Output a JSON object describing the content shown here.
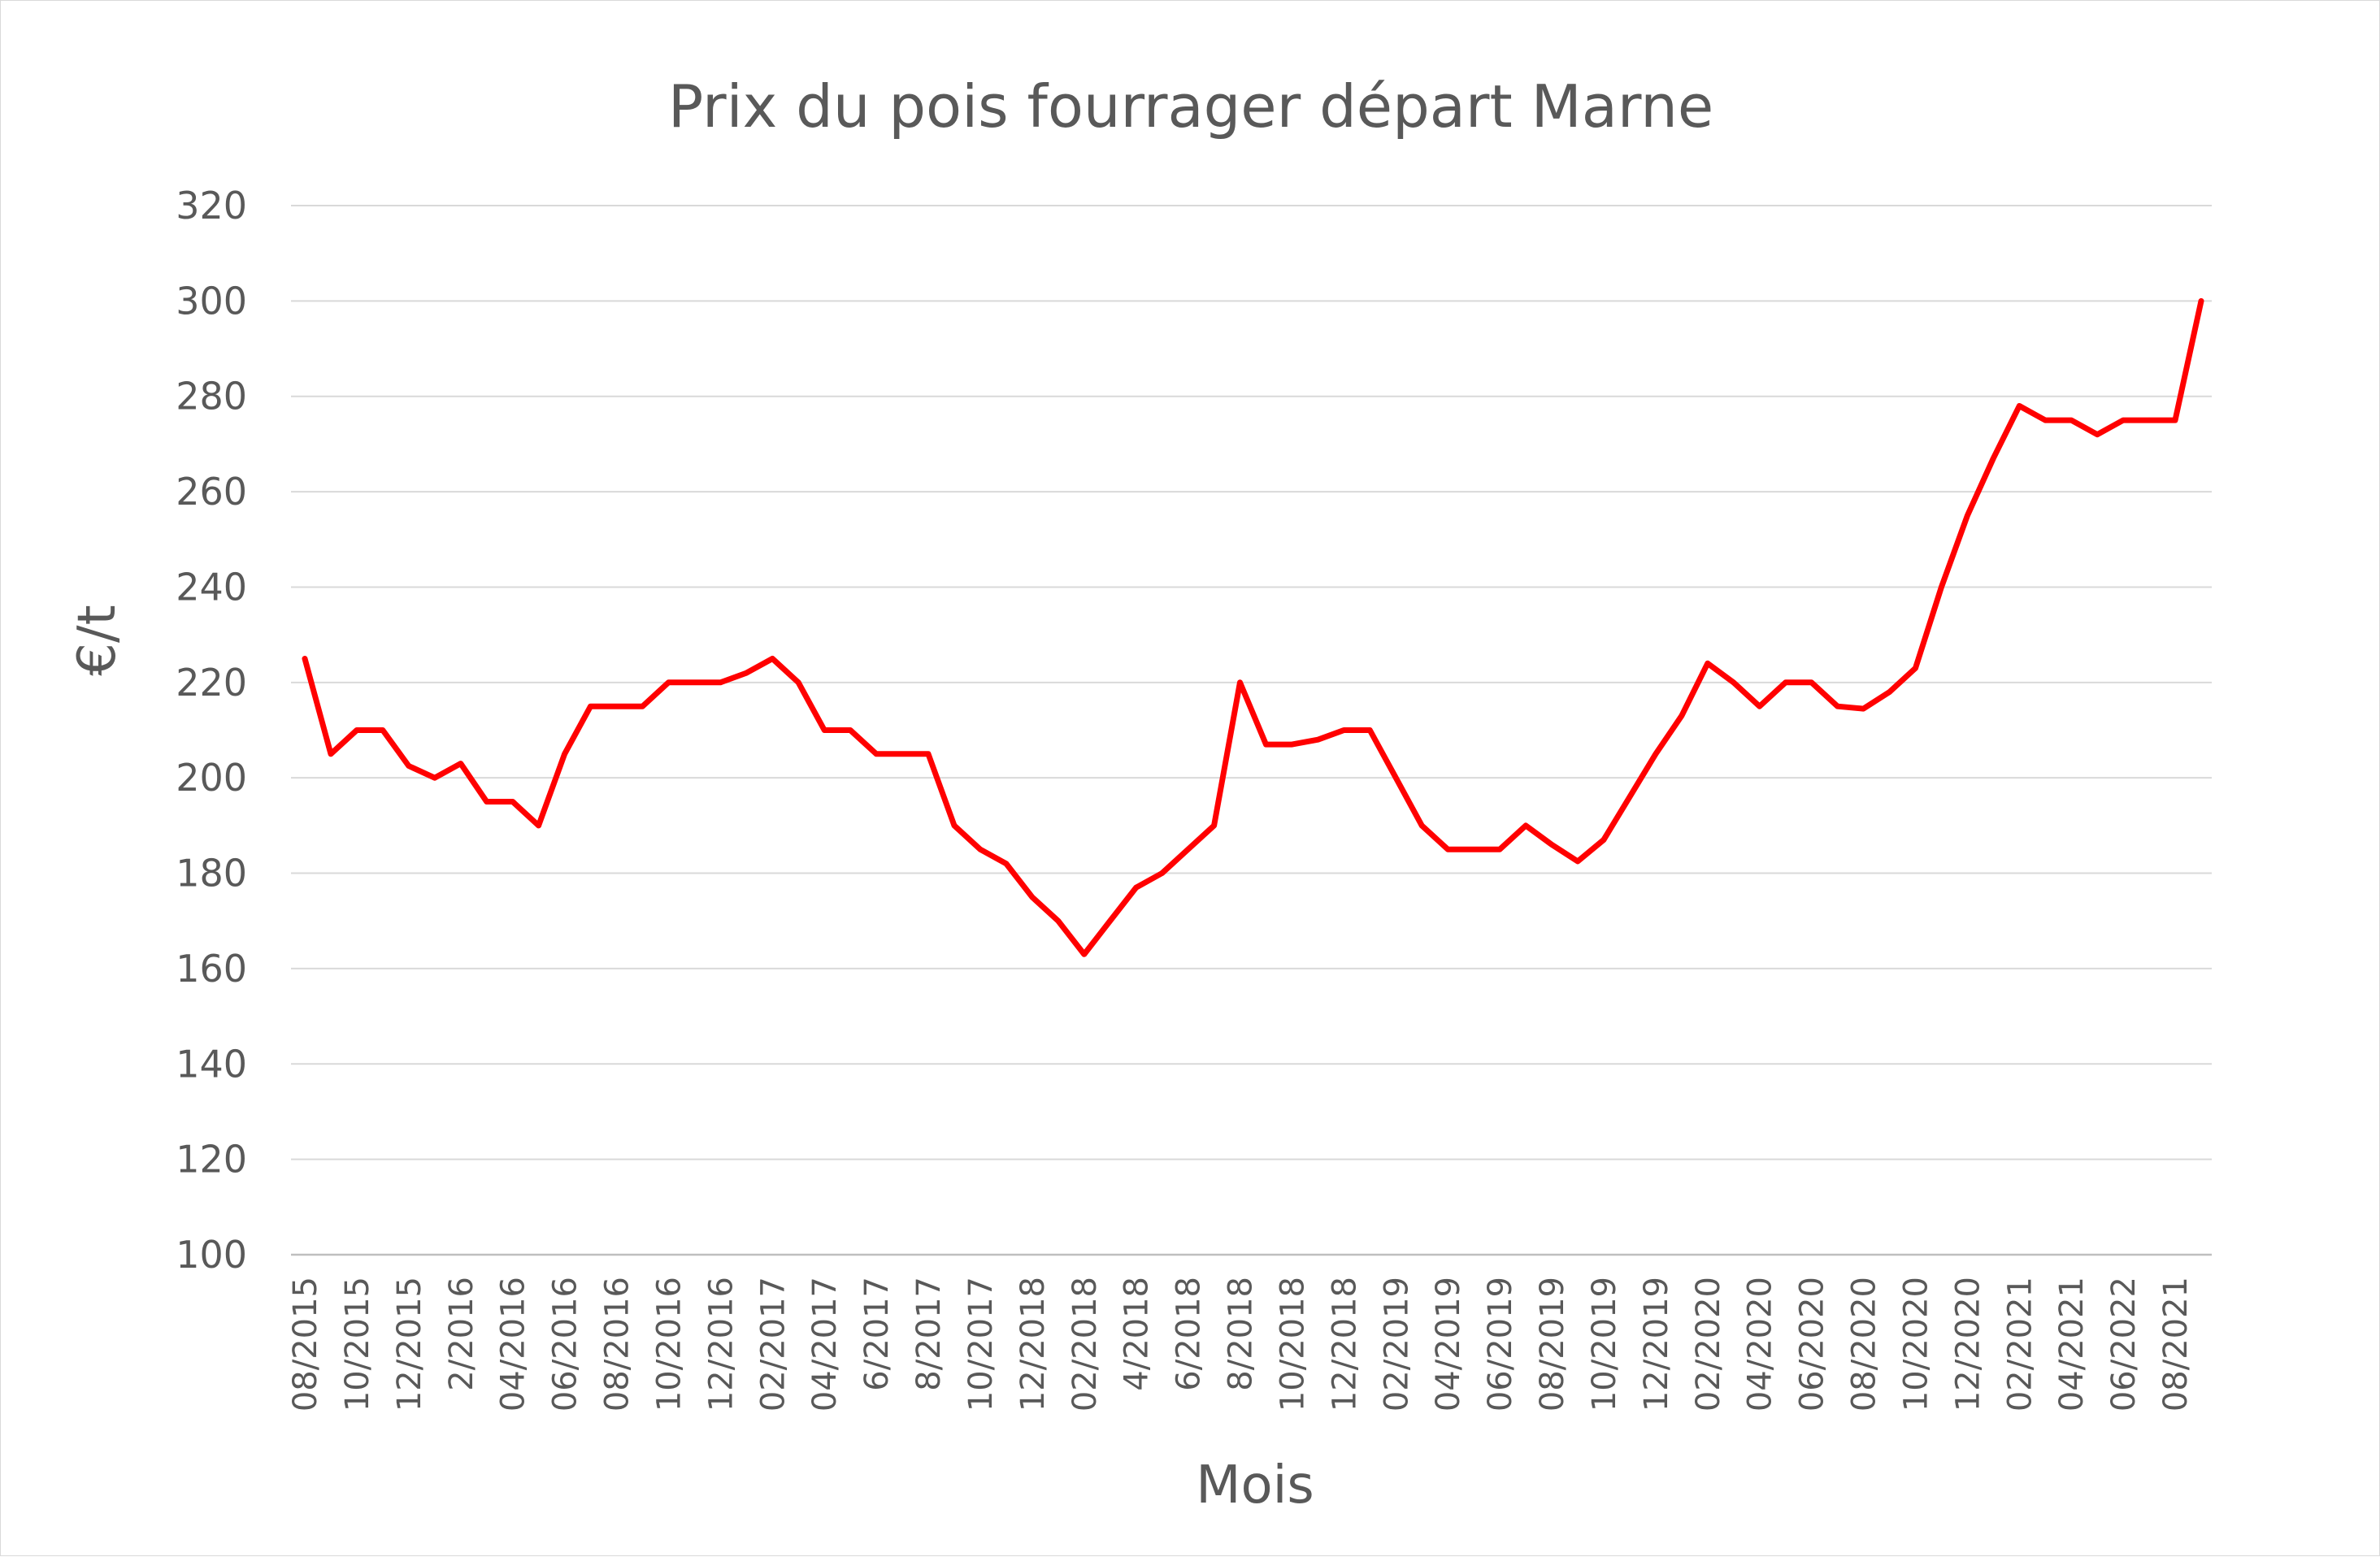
{
  "chart_data": {
    "type": "line",
    "title": "Prix du pois fourrager départ Marne",
    "xlabel": "Mois",
    "ylabel": "€/t",
    "ylim": [
      100,
      320
    ],
    "yticks": [
      "100",
      "120",
      "140",
      "160",
      "180",
      "200",
      "220",
      "240",
      "260",
      "280",
      "300",
      "320"
    ],
    "grid": true,
    "legend": "none",
    "colors": {
      "line": "#ff0000",
      "grid": "#d9d9d9",
      "text": "#595959"
    },
    "tick_labels": [
      "08/2015",
      "10/2015",
      "12/2015",
      "2/2016",
      "04/2016",
      "06/2016",
      "08/2016",
      "10/2016",
      "12/2016",
      "02/2017",
      "04/2017",
      "6/2017",
      "8/2017",
      "10/2017",
      "12/2018",
      "02/2018",
      "4/2018",
      "6/2018",
      "8/2018",
      "10/2018",
      "12/2018",
      "02/2019",
      "04/2019",
      "06/2019",
      "08/2019",
      "10/2019",
      "12/2019",
      "02/2020",
      "04/2020",
      "06/2020",
      "08/2020",
      "10/2020",
      "12/2020",
      "02/2021",
      "04/2021",
      "06/2022",
      "08/2021"
    ],
    "series": [
      {
        "values": [
          225,
          205,
          210,
          210,
          202.5,
          200,
          203,
          195,
          195,
          190,
          205,
          215,
          215,
          215,
          220,
          220,
          220,
          222,
          225,
          220,
          210,
          210,
          205,
          205,
          205,
          190,
          185,
          182,
          175,
          170,
          163,
          170,
          177,
          180,
          185,
          190,
          220,
          207,
          207,
          208,
          210,
          210,
          200,
          190,
          185,
          185,
          185,
          190,
          186,
          182.5,
          187,
          196,
          205,
          213,
          224,
          220,
          215,
          220,
          220,
          215,
          214.5,
          218,
          223,
          240,
          255,
          267,
          278,
          275,
          275,
          272,
          275,
          275,
          275,
          300
        ]
      }
    ]
  }
}
